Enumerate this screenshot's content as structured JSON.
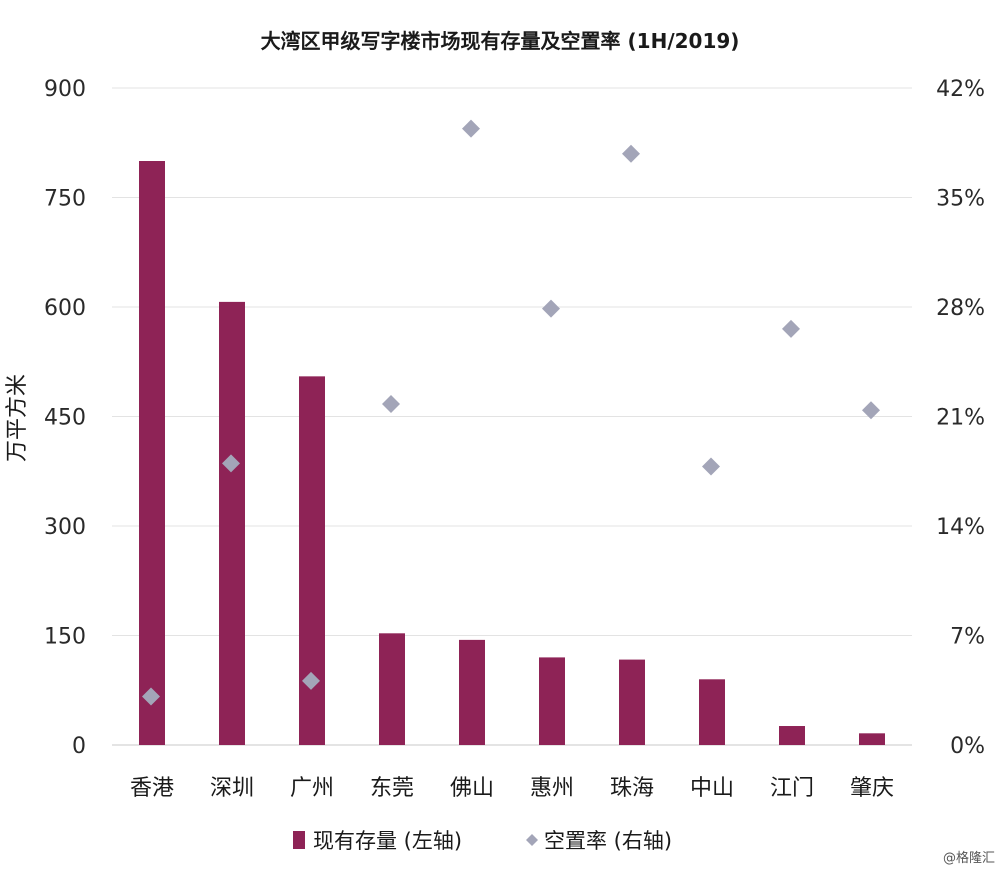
{
  "chart_data": {
    "type": "bar",
    "title": "大湾区甲级写字楼市场现有存量及空置率 (1H/2019)",
    "ylabel": "万平方米",
    "categories": [
      "香港",
      "深圳",
      "广州",
      "东莞",
      "佛山",
      "惠州",
      "珠海",
      "中山",
      "江门",
      "肇庆"
    ],
    "ylim": [
      0,
      900
    ],
    "yticks": [
      "0",
      "150",
      "300",
      "450",
      "600",
      "750",
      "900"
    ],
    "y2lim": [
      0,
      42
    ],
    "y2ticks": [
      "0%",
      "7%",
      "14%",
      "21%",
      "28%",
      "35%",
      "42%"
    ],
    "series": [
      {
        "name": "现有存量 (左轴)",
        "kind": "bar",
        "axis": "left",
        "color": "#8e2356",
        "values": [
          800,
          607,
          505,
          153,
          144,
          120,
          117,
          90,
          26,
          16
        ]
      },
      {
        "name": "空置率 (右轴)",
        "kind": "scatter",
        "axis": "right",
        "color": "#a3a5b8",
        "values": [
          3.1,
          18.0,
          4.1,
          21.8,
          39.4,
          27.9,
          37.8,
          17.8,
          26.6,
          21.4
        ]
      }
    ],
    "legend_position": "bottom",
    "grid": true
  },
  "watermark": "@格隆汇"
}
